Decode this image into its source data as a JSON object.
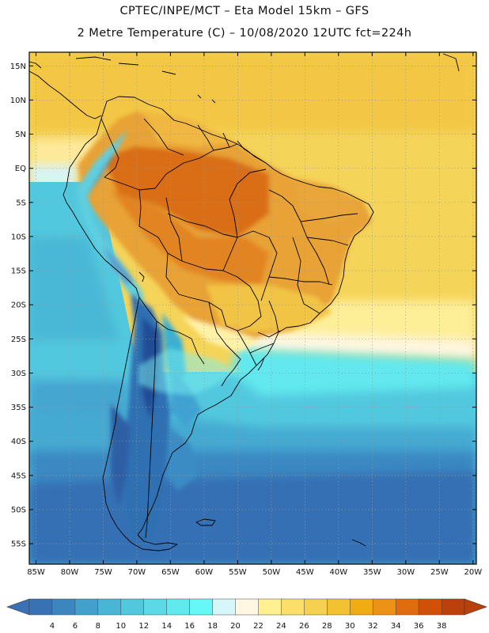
{
  "title": {
    "line1": "CPTEC/INPE/MCT –  Eta Model 15km – GFS",
    "line2": "2 Metre Temperature (C) – 10/08/2020 12UTC fct=224h"
  },
  "map": {
    "region": "South America",
    "lon_range": [
      -86,
      -19.5
    ],
    "lat_range": [
      -58,
      17
    ],
    "lat_ticks": [
      {
        "value": 15,
        "label": "15N"
      },
      {
        "value": 10,
        "label": "10N"
      },
      {
        "value": 5,
        "label": "5N"
      },
      {
        "value": 0,
        "label": "EQ"
      },
      {
        "value": -5,
        "label": "5S"
      },
      {
        "value": -10,
        "label": "10S"
      },
      {
        "value": -15,
        "label": "15S"
      },
      {
        "value": -20,
        "label": "20S"
      },
      {
        "value": -25,
        "label": "25S"
      },
      {
        "value": -30,
        "label": "30S"
      },
      {
        "value": -35,
        "label": "35S"
      },
      {
        "value": -40,
        "label": "40S"
      },
      {
        "value": -45,
        "label": "45S"
      },
      {
        "value": -50,
        "label": "50S"
      },
      {
        "value": -55,
        "label": "55S"
      }
    ],
    "lon_ticks": [
      {
        "value": -85,
        "label": "85W"
      },
      {
        "value": -80,
        "label": "80W"
      },
      {
        "value": -75,
        "label": "75W"
      },
      {
        "value": -70,
        "label": "70W"
      },
      {
        "value": -65,
        "label": "65W"
      },
      {
        "value": -60,
        "label": "60W"
      },
      {
        "value": -55,
        "label": "55W"
      },
      {
        "value": -50,
        "label": "50W"
      },
      {
        "value": -45,
        "label": "45W"
      },
      {
        "value": -40,
        "label": "40W"
      },
      {
        "value": -35,
        "label": "35W"
      },
      {
        "value": -30,
        "label": "30W"
      },
      {
        "value": -25,
        "label": "25W"
      },
      {
        "value": -20,
        "label": "20W"
      }
    ]
  },
  "colorbar": {
    "unit": "C",
    "labels": [
      "4",
      "6",
      "8",
      "10",
      "12",
      "14",
      "16",
      "18",
      "20",
      "22",
      "24",
      "26",
      "28",
      "30",
      "32",
      "34",
      "36",
      "38"
    ],
    "low_color": "#3a70b5",
    "high_color": "#b8400a",
    "colors": [
      "#3872b4",
      "#3c86c0",
      "#42a0cc",
      "#4ab6d6",
      "#52c8de",
      "#5cd8e6",
      "#60eaee",
      "#66f8f6",
      "#d6f6fa",
      "#fff6e4",
      "#fff092",
      "#fbdf6a",
      "#f6d050",
      "#f2c232",
      "#f0ac12",
      "#ec9216",
      "#e06c10",
      "#d05008",
      "#bc400c"
    ]
  }
}
